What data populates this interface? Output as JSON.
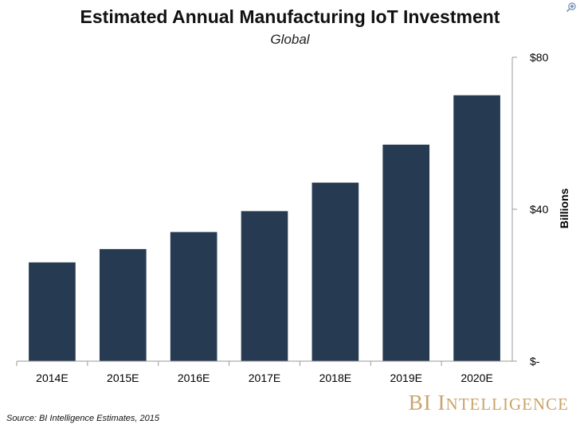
{
  "chart_data": {
    "type": "bar",
    "title": "Estimated Annual Manufacturing IoT Investment",
    "subtitle": "Global",
    "categories": [
      "2014E",
      "2015E",
      "2016E",
      "2017E",
      "2018E",
      "2019E",
      "2020E"
    ],
    "values": [
      26,
      29.5,
      34,
      39.5,
      47,
      57,
      70
    ],
    "ylabel": "Billions",
    "ylim": [
      0,
      80
    ],
    "yticks": [
      {
        "value": 0,
        "label": "$-"
      },
      {
        "value": 40,
        "label": "$40"
      },
      {
        "value": 80,
        "label": "$80"
      }
    ],
    "y_axis_position": "right",
    "grid": false,
    "bar_color": "#263a52"
  },
  "branding": {
    "logo_first": "BI",
    "logo_initial": "I",
    "logo_rest": "NTELLIGENCE",
    "logo_color": "#c9a46a",
    "source": "Source: BI Intelligence Estimates, 2015"
  },
  "icons": {
    "zoom": "zoom-in-icon"
  }
}
